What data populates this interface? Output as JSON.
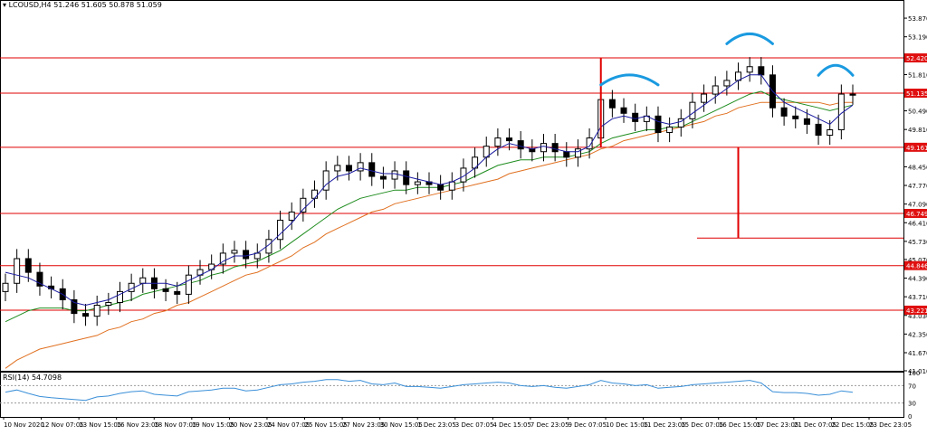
{
  "chart_data": {
    "type": "candlestick",
    "symbol_header": "LCOUSD,H4  51.246 51.605 50.878 51.059",
    "y_ticks": [
      53.87,
      53.19,
      51.81,
      50.49,
      49.81,
      48.45,
      47.77,
      47.09,
      46.41,
      45.73,
      45.07,
      44.39,
      43.71,
      43.03,
      42.35,
      41.67,
      41.01
    ],
    "y_tick_labels": [
      "53.870",
      "53.190",
      "51.810",
      "50.490",
      "49.810",
      "48.450",
      "47.770",
      "47.090",
      "46.410",
      "45.730",
      "45.070",
      "44.390",
      "43.710",
      "43.030",
      "42.350",
      "41.670",
      "41.010"
    ],
    "ylim": [
      41.01,
      54.4
    ],
    "levels": [
      {
        "value": 52.42,
        "label": "52.420"
      },
      {
        "value": 51.135,
        "label": "51.135"
      },
      {
        "value": 49.161,
        "label": "49.161"
      },
      {
        "value": 46.749,
        "label": "46.749"
      },
      {
        "value": 44.846,
        "label": "44.846"
      },
      {
        "value": 43.221,
        "label": "43.221"
      }
    ],
    "x_labels": [
      "10 Nov 2020",
      "12 Nov 07:05",
      "13 Nov 15:05",
      "16 Nov 23:05",
      "18 Nov 07:05",
      "19 Nov 15:05",
      "20 Nov 23:05",
      "24 Nov 07:05",
      "25 Nov 15:05",
      "27 Nov 23:05",
      "30 Nov 15:05",
      "1 Dec 23:05",
      "3 Dec 07:05",
      "4 Dec 15:05",
      "7 Dec 23:05",
      "9 Dec 07:05",
      "10 Dec 15:05",
      "11 Dec 23:05",
      "15 Dec 07:05",
      "16 Dec 15:05",
      "17 Dec 23:05",
      "21 Dec 07:05",
      "22 Dec 15:05",
      "23 Dec 23:05"
    ],
    "close": [
      44.2,
      45.1,
      44.6,
      44.1,
      44.0,
      43.6,
      43.1,
      43.0,
      43.4,
      43.5,
      43.9,
      44.2,
      44.4,
      44.0,
      43.9,
      43.8,
      44.5,
      44.7,
      44.9,
      45.3,
      45.4,
      45.1,
      45.3,
      45.8,
      46.5,
      46.8,
      47.3,
      47.6,
      48.3,
      48.5,
      48.3,
      48.6,
      48.1,
      48.0,
      48.3,
      47.8,
      47.9,
      47.8,
      47.6,
      47.9,
      48.4,
      48.8,
      49.2,
      49.5,
      49.4,
      49.1,
      49.0,
      49.3,
      49.0,
      48.8,
      49.1,
      49.5,
      50.9,
      50.6,
      50.4,
      50.1,
      50.3,
      49.7,
      49.9,
      50.2,
      50.8,
      51.1,
      51.4,
      51.6,
      51.9,
      52.1,
      51.8,
      50.6,
      50.3,
      50.2,
      50.0,
      49.6,
      49.8,
      51.1,
      51.06
    ],
    "ma_fast": [
      44.6,
      44.5,
      44.4,
      44.2,
      44.0,
      43.8,
      43.5,
      43.4,
      43.5,
      43.6,
      43.8,
      44.0,
      44.2,
      44.2,
      44.2,
      44.1,
      44.3,
      44.5,
      44.7,
      45.0,
      45.2,
      45.2,
      45.3,
      45.6,
      46.0,
      46.4,
      46.9,
      47.3,
      47.8,
      48.1,
      48.2,
      48.4,
      48.3,
      48.2,
      48.2,
      48.1,
      48.0,
      47.9,
      47.8,
      47.9,
      48.1,
      48.4,
      48.8,
      49.1,
      49.3,
      49.2,
      49.1,
      49.2,
      49.1,
      49.0,
      49.0,
      49.2,
      49.9,
      50.2,
      50.3,
      50.2,
      50.3,
      50.1,
      50.0,
      50.1,
      50.4,
      50.7,
      51.0,
      51.3,
      51.6,
      51.8,
      51.8,
      51.2,
      50.8,
      50.6,
      50.4,
      50.2,
      50.0,
      50.4,
      50.7
    ],
    "ma_mid": [
      42.8,
      43.0,
      43.2,
      43.3,
      43.3,
      43.3,
      43.2,
      43.2,
      43.3,
      43.4,
      43.5,
      43.6,
      43.8,
      43.9,
      44.0,
      44.1,
      44.2,
      44.3,
      44.5,
      44.6,
      44.8,
      44.9,
      45.0,
      45.2,
      45.4,
      45.7,
      46.0,
      46.3,
      46.6,
      46.9,
      47.1,
      47.3,
      47.4,
      47.5,
      47.6,
      47.6,
      47.7,
      47.7,
      47.7,
      47.8,
      47.9,
      48.1,
      48.3,
      48.5,
      48.6,
      48.7,
      48.7,
      48.8,
      48.8,
      48.8,
      48.9,
      49.0,
      49.3,
      49.5,
      49.6,
      49.7,
      49.8,
      49.8,
      49.9,
      49.9,
      50.1,
      50.3,
      50.5,
      50.7,
      50.9,
      51.1,
      51.2,
      51.0,
      50.9,
      50.8,
      50.7,
      50.6,
      50.5,
      50.6,
      50.7
    ],
    "ma_slow": [
      41.1,
      41.4,
      41.6,
      41.8,
      41.9,
      42.0,
      42.1,
      42.2,
      42.3,
      42.5,
      42.6,
      42.8,
      42.9,
      43.1,
      43.2,
      43.4,
      43.5,
      43.7,
      43.9,
      44.1,
      44.3,
      44.5,
      44.6,
      44.8,
      45.0,
      45.2,
      45.5,
      45.7,
      46.0,
      46.2,
      46.4,
      46.6,
      46.8,
      46.9,
      47.1,
      47.2,
      47.3,
      47.4,
      47.5,
      47.6,
      47.7,
      47.8,
      47.9,
      48.0,
      48.2,
      48.3,
      48.4,
      48.5,
      48.6,
      48.7,
      48.8,
      48.9,
      49.1,
      49.2,
      49.4,
      49.5,
      49.6,
      49.7,
      49.8,
      49.9,
      50.0,
      50.1,
      50.3,
      50.4,
      50.6,
      50.7,
      50.8,
      50.8,
      50.8,
      50.8,
      50.8,
      50.8,
      50.7,
      50.8,
      50.8
    ],
    "rsi": {
      "header": "RSI(14) 54.7098",
      "y_tick_labels": [
        "100",
        "70",
        "30",
        "0"
      ],
      "y_ticks": [
        100,
        70,
        30,
        0
      ],
      "levels": [
        70,
        30
      ],
      "values": [
        55,
        60,
        52,
        45,
        42,
        40,
        38,
        36,
        44,
        46,
        52,
        56,
        58,
        50,
        48,
        46,
        56,
        58,
        60,
        64,
        64,
        58,
        60,
        66,
        72,
        74,
        78,
        80,
        84,
        84,
        80,
        82,
        74,
        72,
        76,
        68,
        68,
        66,
        64,
        68,
        72,
        74,
        76,
        78,
        76,
        70,
        68,
        70,
        66,
        64,
        68,
        72,
        82,
        76,
        74,
        70,
        72,
        64,
        66,
        68,
        72,
        74,
        76,
        78,
        80,
        82,
        76,
        56,
        54,
        54,
        52,
        48,
        50,
        58,
        54.7
      ]
    },
    "annotations": {
      "vertical_red_lines": [
        {
          "x_index": 52,
          "from": 49.16,
          "to": 52.42
        },
        {
          "x_index": 64,
          "from": 49.16,
          "to": 45.85
        }
      ],
      "target_level": 45.85,
      "head_and_shoulders_arcs": [
        "left-shoulder",
        "head",
        "right-shoulder"
      ]
    },
    "colors": {
      "candle_bull": "#ffffff",
      "candle_bear": "#000000",
      "ma_fast": "#1a1aa0",
      "ma_mid": "#1e8c1e",
      "ma_slow": "#e07020",
      "level_line": "#e00000",
      "arc": "#1a9ae0",
      "rsi": "#3a8fd8",
      "label_bg": "#e01010"
    }
  }
}
